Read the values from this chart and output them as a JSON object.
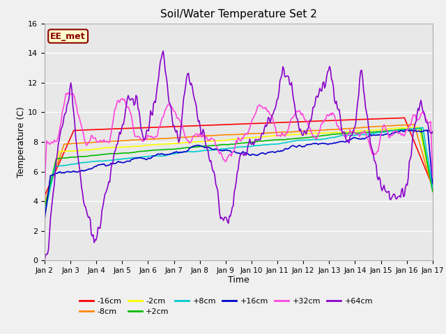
{
  "title": "Soil/Water Temperature Set 2",
  "xlabel": "Time",
  "ylabel": "Temperature (C)",
  "ylim": [
    0,
    16
  ],
  "xlim": [
    0,
    15
  ],
  "fig_bg": "#f0f0f0",
  "plot_bg": "#e8e8e8",
  "x_tick_labels": [
    "Jan 2",
    "Jan 3",
    "Jan 4",
    "Jan 5",
    "Jan 6",
    "Jan 7",
    "Jan 8",
    "Jan 9",
    "Jan 10",
    "Jan 11",
    "Jan 12",
    "Jan 13",
    "Jan 14",
    "Jan 15",
    "Jan 16",
    "Jan 17"
  ],
  "annotation_text": "EE_met",
  "annotation_fg": "#8B0000",
  "annotation_bg": "#ffffcc",
  "series_colors": {
    "-16cm": "#ff0000",
    "-8cm": "#ff8800",
    "-2cm": "#ffff00",
    "+2cm": "#00bb00",
    "+8cm": "#00cccc",
    "+16cm": "#0000cc",
    "+32cm": "#ff44dd",
    "+64cm": "#8800cc"
  },
  "legend_row1": [
    "-16cm",
    "-8cm",
    "-2cm",
    "+2cm",
    "+8cm",
    "+16cm"
  ],
  "legend_row2": [
    "+32cm",
    "+64cm"
  ]
}
